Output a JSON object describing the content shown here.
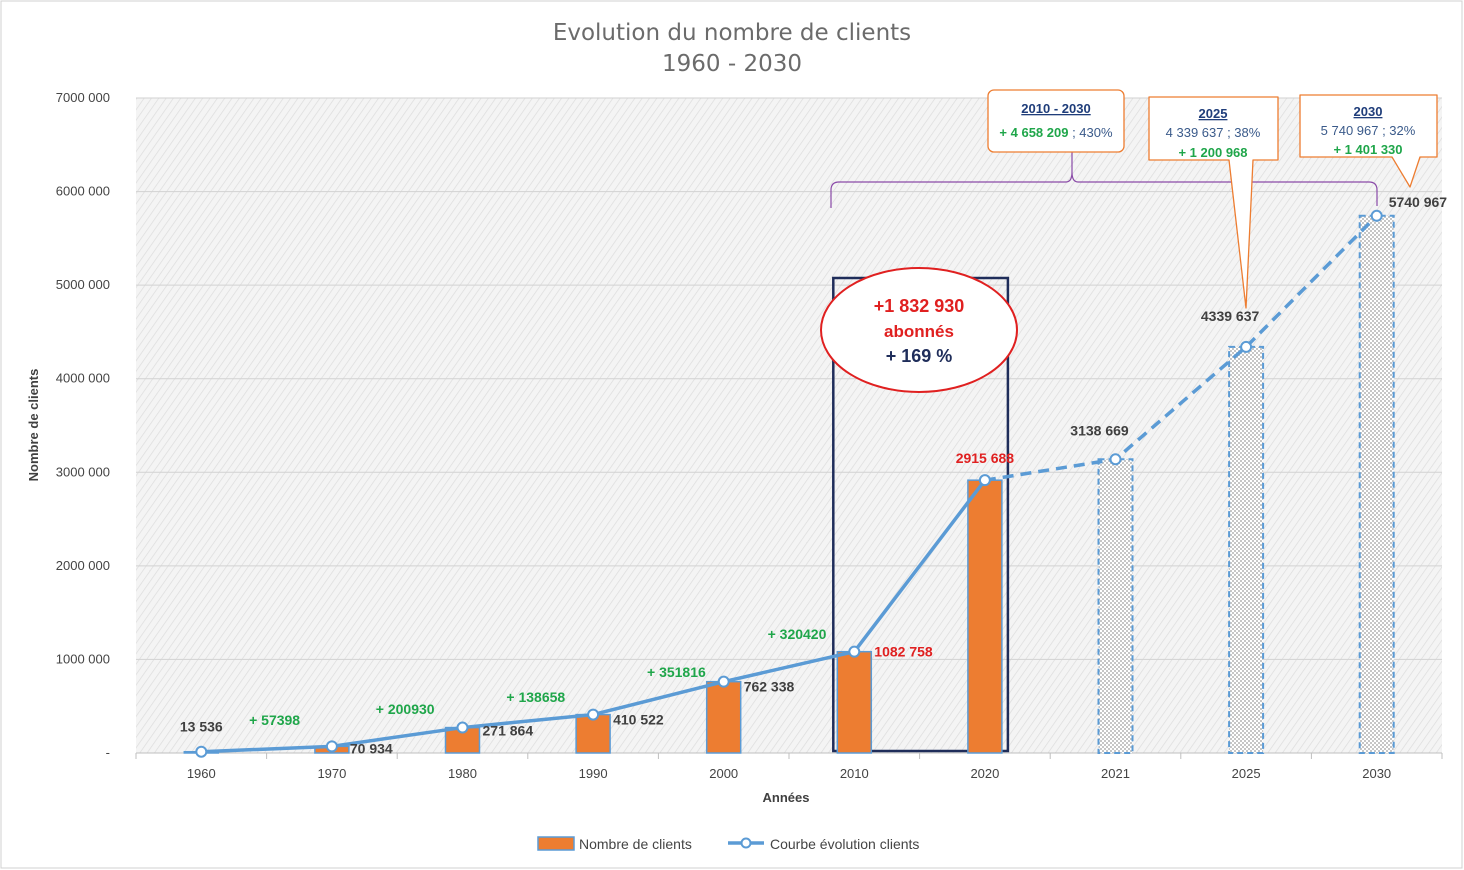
{
  "chart_data": {
    "type": "bar",
    "title": "Evolution du nombre de clients",
    "subtitle": "1960 - 2030",
    "xlabel": "Années",
    "ylabel": "Nombre de clients",
    "ylim": [
      0,
      7000000
    ],
    "yticks": [
      0,
      1000000,
      2000000,
      3000000,
      4000000,
      5000000,
      6000000,
      7000000
    ],
    "ytick_labels": [
      "-",
      "1000 000",
      "2000 000",
      "3000 000",
      "4000 000",
      "5000 000",
      "6000 000",
      "7000 000"
    ],
    "grid": true,
    "legend_position": "bottom",
    "categories": [
      "1960",
      "1970",
      "1980",
      "1990",
      "2000",
      "2010",
      "2020",
      "2021",
      "2025",
      "2030"
    ],
    "series": [
      {
        "name": "Nombre de clients",
        "kind": "bar",
        "color": "#ed7d31",
        "values": [
          13536,
          70934,
          271864,
          410522,
          762338,
          1082758,
          2915688,
          3138669,
          4339637,
          5740967
        ],
        "projected": [
          false,
          false,
          false,
          false,
          false,
          false,
          false,
          true,
          true,
          true
        ]
      },
      {
        "name": "Courbe évolution clients",
        "kind": "line",
        "color": "#5b9bd5",
        "values": [
          13536,
          70934,
          271864,
          410522,
          762338,
          1082758,
          2915688,
          3138669,
          4339637,
          5740967
        ]
      }
    ],
    "value_labels": [
      {
        "text": "13 536",
        "color": "#404040"
      },
      {
        "text": "70 934",
        "color": "#404040"
      },
      {
        "text": "271 864",
        "color": "#404040"
      },
      {
        "text": "410 522",
        "color": "#404040"
      },
      {
        "text": "762 338",
        "color": "#404040"
      },
      {
        "text": "1082 758",
        "color": "#e02020"
      },
      {
        "text": "2915 688",
        "color": "#e02020"
      },
      {
        "text": "3138 669",
        "color": "#404040"
      },
      {
        "text": "4339 637",
        "color": "#404040"
      },
      {
        "text": "5740 967",
        "color": "#404040"
      }
    ],
    "increments": [
      {
        "text": "+ 57398",
        "between": [
          0,
          1
        ]
      },
      {
        "text": "+ 200930",
        "between": [
          1,
          2
        ]
      },
      {
        "text": "+ 138658",
        "between": [
          2,
          3
        ]
      },
      {
        "text": "+ 351816",
        "between": [
          3,
          4
        ]
      },
      {
        "text": "+ 320420",
        "between": [
          4,
          5
        ]
      }
    ],
    "highlight": {
      "line1": "+1 832 930",
      "line2": "abonnés",
      "line3": "+ 169 %",
      "from_category": "2010",
      "to_category": "2020"
    },
    "callouts": [
      {
        "title": "2010 - 2030",
        "line1": "+ 4 658 209",
        "line1b": " ; 430%",
        "line2": ""
      },
      {
        "title": "2025",
        "line1": "4 339 637 ; 38%",
        "line1b": "",
        "line2": "+ 1 200 968"
      },
      {
        "title": "2030",
        "line1": "5 740 967 ; 32%",
        "line1b": "",
        "line2": "+ 1 401 330"
      }
    ],
    "colors": {
      "bar": "#ed7d31",
      "bar_border": "#5b9bd5",
      "line": "#5b9bd5",
      "increment": "#1fa64a",
      "highlight_red": "#e02020",
      "highlight_navy": "#1f2d5a",
      "callout_border": "#ed7d31",
      "callout_title": "#1f3d7a",
      "callout_text": "#3a5a8a",
      "brace": "#8a4aa8"
    }
  }
}
